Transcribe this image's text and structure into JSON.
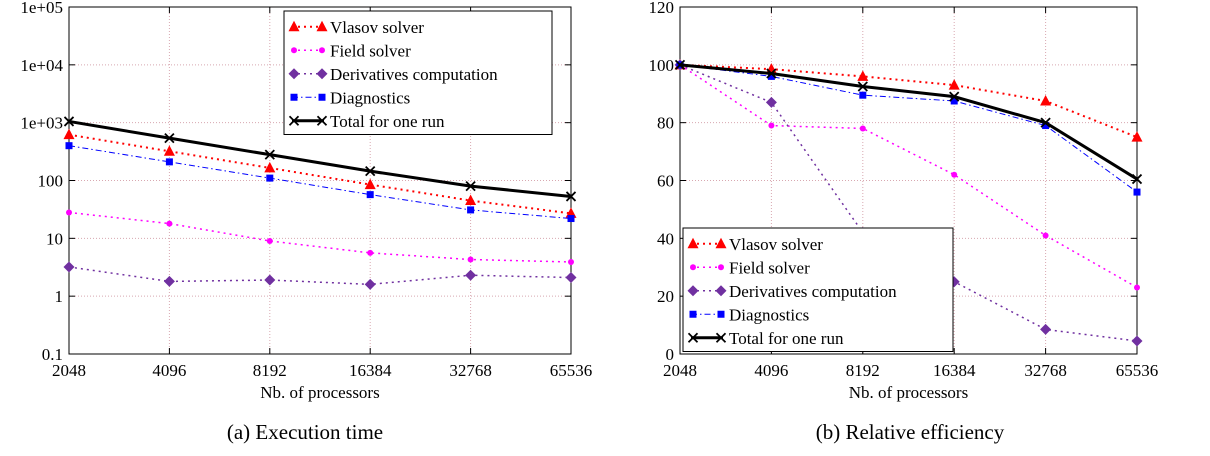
{
  "chart_data": [
    {
      "type": "line",
      "y_scale": "log",
      "caption": "(a) Execution time",
      "xlabel": "Nb. of processors",
      "ylabel": "",
      "categories": [
        "2048",
        "4096",
        "8192",
        "16384",
        "32768",
        "65536"
      ],
      "ylim": [
        0.1,
        100000
      ],
      "yticks": [
        {
          "value": 0.1,
          "label": "0.1"
        },
        {
          "value": 1,
          "label": "1"
        },
        {
          "value": 10,
          "label": "10"
        },
        {
          "value": 100,
          "label": "100"
        },
        {
          "value": 1000,
          "label": "1e+03"
        },
        {
          "value": 10000,
          "label": "1e+04"
        },
        {
          "value": 100000,
          "label": "1e+05"
        }
      ],
      "grid": true,
      "legend_position": "top-right",
      "series": [
        {
          "name": "Vlasov solver",
          "color": "#ff0000",
          "marker": "triangle",
          "dash": "dotted",
          "width": 2,
          "values": [
            620,
            320,
            165,
            85,
            45,
            27
          ]
        },
        {
          "name": "Field solver",
          "color": "#ff00ff",
          "marker": "circle",
          "dash": "dotted",
          "width": 1.5,
          "values": [
            28,
            18,
            9,
            5.6,
            4.3,
            3.9
          ]
        },
        {
          "name": "Derivatives computation",
          "color": "#7030a0",
          "marker": "diamond",
          "dash": "dotted",
          "width": 1.5,
          "values": [
            3.2,
            1.8,
            1.9,
            1.6,
            2.3,
            2.1
          ]
        },
        {
          "name": "Diagnostics",
          "color": "#0000ff",
          "marker": "square",
          "dash": "dashdot",
          "width": 1,
          "values": [
            400,
            210,
            110,
            57,
            31,
            22
          ]
        },
        {
          "name": "Total for one run",
          "color": "#000000",
          "marker": "cross",
          "dash": "solid",
          "width": 3,
          "values": [
            1050,
            540,
            280,
            145,
            80,
            53
          ]
        }
      ]
    },
    {
      "type": "line",
      "y_scale": "linear",
      "caption": "(b) Relative efficiency",
      "xlabel": "Nb. of processors",
      "ylabel": "",
      "categories": [
        "2048",
        "4096",
        "8192",
        "16384",
        "32768",
        "65536"
      ],
      "ylim": [
        0,
        120
      ],
      "yticks": [
        {
          "value": 0,
          "label": "0"
        },
        {
          "value": 20,
          "label": "20"
        },
        {
          "value": 40,
          "label": "40"
        },
        {
          "value": 60,
          "label": "60"
        },
        {
          "value": 80,
          "label": "80"
        },
        {
          "value": 100,
          "label": "100"
        },
        {
          "value": 120,
          "label": "120"
        }
      ],
      "grid": true,
      "legend_position": "bottom-left",
      "series": [
        {
          "name": "Vlasov solver",
          "color": "#ff0000",
          "marker": "triangle",
          "dash": "dotted",
          "width": 2,
          "values": [
            100,
            98.5,
            96,
            93,
            87.5,
            75
          ]
        },
        {
          "name": "Field solver",
          "color": "#ff00ff",
          "marker": "circle",
          "dash": "dotted",
          "width": 1.5,
          "values": [
            100,
            79,
            78,
            62,
            41,
            23
          ]
        },
        {
          "name": "Derivatives computation",
          "color": "#7030a0",
          "marker": "diamond",
          "dash": "dotted",
          "width": 1.5,
          "values": [
            100,
            87,
            42,
            25,
            8.5,
            4.5
          ]
        },
        {
          "name": "Diagnostics",
          "color": "#0000ff",
          "marker": "square",
          "dash": "dashdot",
          "width": 1,
          "values": [
            100,
            96,
            89.5,
            87.5,
            79,
            56
          ]
        },
        {
          "name": "Total for one run",
          "color": "#000000",
          "marker": "cross",
          "dash": "solid",
          "width": 3,
          "values": [
            100,
            97,
            92.5,
            89,
            80,
            60.5
          ]
        }
      ]
    }
  ]
}
